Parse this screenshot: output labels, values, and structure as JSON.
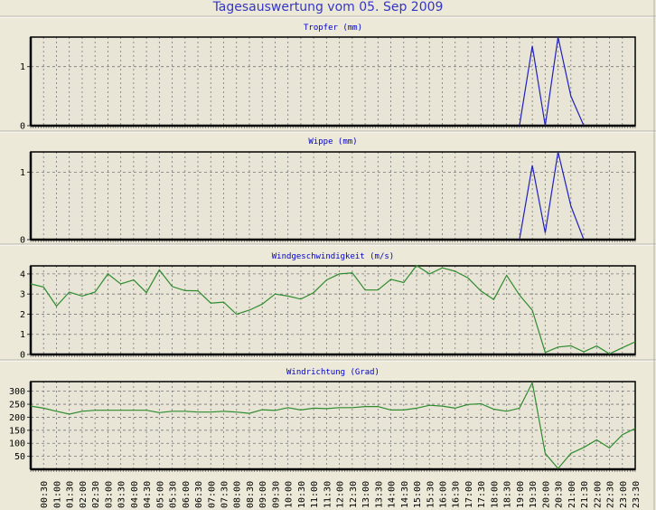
{
  "title": "Tagesauswertung vom 05. Sep 2009",
  "colors": {
    "rain": "#2020C0",
    "wind": "#2E8B2E",
    "title": "#3535C8",
    "background": "#ECE9D8"
  },
  "x_labels": [
    "00:30",
    "01:00",
    "01:30",
    "02:00",
    "02:30",
    "03:00",
    "03:30",
    "04:00",
    "04:30",
    "05:00",
    "05:30",
    "06:00",
    "06:30",
    "07:00",
    "07:30",
    "08:00",
    "08:30",
    "09:00",
    "09:30",
    "10:00",
    "10:30",
    "11:00",
    "11:30",
    "12:00",
    "12:30",
    "13:00",
    "13:30",
    "14:00",
    "14:30",
    "15:00",
    "15:30",
    "16:00",
    "16:30",
    "17:00",
    "17:30",
    "18:00",
    "18:30",
    "19:00",
    "19:30",
    "20:00",
    "20:30",
    "21:00",
    "21:30",
    "22:00",
    "22:30",
    "23:00",
    "23:30"
  ],
  "chart_data": [
    {
      "type": "line",
      "title": "Tropfer (mm)",
      "ylim": [
        0,
        1.5
      ],
      "yticks": [
        0,
        1
      ],
      "grid": true,
      "x": [
        "19:00",
        "19:30",
        "20:00",
        "20:30",
        "21:00",
        "21:30"
      ],
      "values": [
        0,
        1.35,
        0,
        1.5,
        0.5,
        0
      ]
    },
    {
      "type": "line",
      "title": "Wippe (mm)",
      "ylim": [
        0,
        1.3
      ],
      "yticks": [
        0,
        1
      ],
      "grid": true,
      "x": [
        "19:00",
        "19:30",
        "20:00",
        "20:30",
        "21:00",
        "21:30"
      ],
      "values": [
        0,
        1.1,
        0.1,
        1.3,
        0.5,
        0
      ]
    },
    {
      "type": "line",
      "title": "Windgeschwindigkeit (m/s)",
      "ylim": [
        0,
        4.4
      ],
      "yticks": [
        0,
        1,
        2,
        3,
        4
      ],
      "grid": true,
      "x": [
        "00:00",
        "00:30",
        "01:00",
        "01:30",
        "02:00",
        "02:30",
        "03:00",
        "03:30",
        "04:00",
        "04:30",
        "05:00",
        "05:30",
        "06:00",
        "06:30",
        "07:00",
        "07:30",
        "08:00",
        "08:30",
        "09:00",
        "09:30",
        "10:00",
        "10:30",
        "11:00",
        "11:30",
        "12:00",
        "12:30",
        "13:00",
        "13:30",
        "14:00",
        "14:30",
        "15:00",
        "15:30",
        "16:00",
        "16:30",
        "17:00",
        "17:30",
        "18:00",
        "18:30",
        "19:00",
        "19:30",
        "20:00",
        "20:30",
        "21:00",
        "21:30",
        "22:00",
        "22:30",
        "23:00",
        "23:30"
      ],
      "values": [
        3.5,
        3.35,
        2.4,
        3.1,
        2.9,
        3.1,
        4.0,
        3.5,
        3.7,
        3.07,
        4.2,
        3.37,
        3.17,
        3.16,
        2.55,
        2.6,
        2.0,
        2.2,
        2.5,
        3.0,
        2.9,
        2.75,
        3.07,
        3.7,
        4.0,
        4.05,
        3.2,
        3.2,
        3.73,
        3.57,
        4.42,
        4.0,
        4.3,
        4.13,
        3.8,
        3.15,
        2.73,
        3.93,
        2.95,
        2.2,
        0.1,
        0.37,
        0.43,
        0.13,
        0.42,
        0.03,
        0.33,
        0.63
      ]
    },
    {
      "type": "line",
      "title": "Windrichtung (Grad)",
      "ylim": [
        0,
        337
      ],
      "yticks": [
        50,
        100,
        150,
        200,
        250,
        300
      ],
      "grid": true,
      "x": [
        "00:00",
        "00:30",
        "01:00",
        "01:30",
        "02:00",
        "02:30",
        "03:00",
        "03:30",
        "04:00",
        "04:30",
        "05:00",
        "05:30",
        "06:00",
        "06:30",
        "07:00",
        "07:30",
        "08:00",
        "08:30",
        "09:00",
        "09:30",
        "10:00",
        "10:30",
        "11:00",
        "11:30",
        "12:00",
        "12:30",
        "13:00",
        "13:30",
        "14:00",
        "14:30",
        "15:00",
        "15:30",
        "16:00",
        "16:30",
        "17:00",
        "17:30",
        "18:00",
        "18:30",
        "19:00",
        "19:30",
        "20:00",
        "20:30",
        "21:00",
        "21:30",
        "22:00",
        "22:30",
        "23:00",
        "23:30"
      ],
      "values": [
        243,
        235,
        223,
        212,
        223,
        227,
        227,
        227,
        227,
        227,
        218,
        223,
        223,
        220,
        220,
        223,
        220,
        215,
        229,
        226,
        237,
        228,
        235,
        233,
        237,
        237,
        241,
        241,
        228,
        228,
        235,
        246,
        243,
        235,
        249,
        252,
        231,
        223,
        235,
        333,
        61,
        3,
        61,
        84,
        113,
        82,
        133,
        157
      ]
    }
  ]
}
